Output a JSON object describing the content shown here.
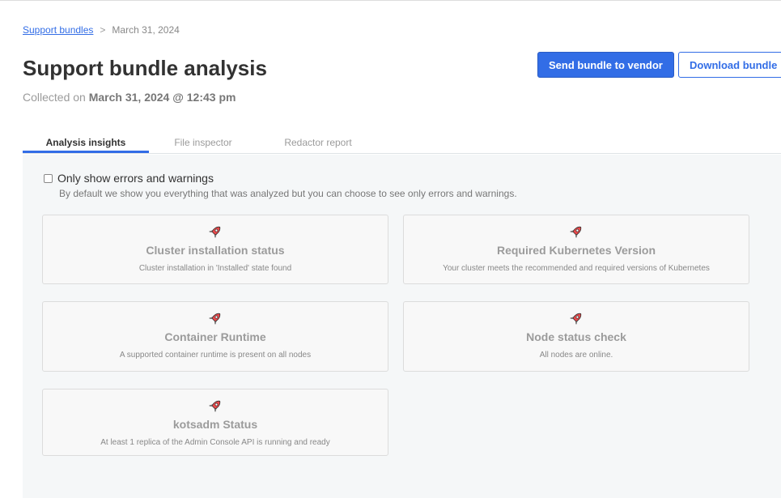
{
  "breadcrumb": {
    "link": "Support bundles",
    "separator": ">",
    "current": "March 31, 2024"
  },
  "title": "Support bundle analysis",
  "collected": {
    "prefix": "Collected on",
    "value": "March 31, 2024 @ 12:43 pm"
  },
  "buttons": {
    "send": "Send bundle to vendor",
    "download": "Download bundle"
  },
  "tabs": [
    {
      "label": "Analysis insights",
      "active": true
    },
    {
      "label": "File inspector"
    },
    {
      "label": "Redactor report"
    }
  ],
  "filter": {
    "label": "Only show errors and warnings",
    "checked": false,
    "hint": "By default we show you everything that was analyzed but you can choose to see only errors and warnings."
  },
  "cards": [
    {
      "icon": "rocket-icon",
      "title": "Cluster installation status",
      "desc": "Cluster installation in 'Installed' state found"
    },
    {
      "icon": "rocket-icon",
      "title": "Required Kubernetes Version",
      "desc": "Your cluster meets the recommended and required versions of Kubernetes"
    },
    {
      "icon": "rocket-icon",
      "title": "Container Runtime",
      "desc": "A supported container runtime is present on all nodes"
    },
    {
      "icon": "rocket-icon",
      "title": "Node status check",
      "desc": "All nodes are online."
    },
    {
      "icon": "rocket-icon",
      "title": "kotsadm Status",
      "desc": "At least 1 replica of the Admin Console API is running and ready"
    }
  ],
  "colors": {
    "accent": "#326de6",
    "icon": "#e8484a"
  }
}
